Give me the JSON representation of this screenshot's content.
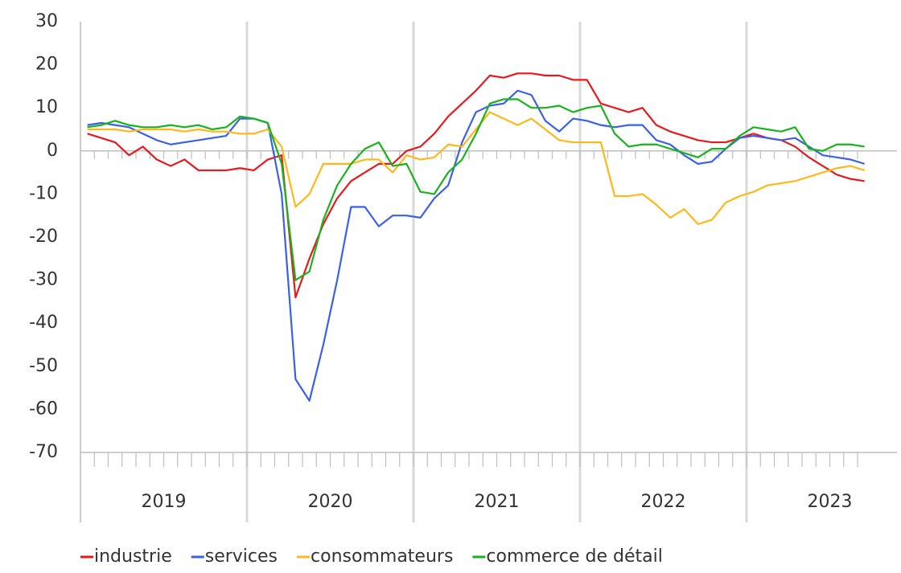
{
  "chart_data": {
    "type": "line",
    "groups": [
      "2019",
      "2020",
      "2021",
      "2022",
      "2023"
    ],
    "categories": [
      null,
      null,
      null,
      null,
      null,
      null,
      null,
      null,
      null,
      null,
      null,
      null,
      null,
      null,
      null,
      null,
      null,
      null,
      null,
      null,
      null,
      null,
      null,
      null,
      null,
      null,
      null,
      null,
      null,
      null,
      null,
      null,
      null,
      null,
      null,
      null,
      null,
      null,
      null,
      null,
      null,
      null,
      null,
      null,
      null,
      null,
      null,
      null,
      null,
      null,
      null,
      null,
      null,
      null,
      null,
      null,
      null
    ],
    "ylim": [
      -70,
      30
    ],
    "yticks": [
      30,
      20,
      10,
      0,
      -10,
      -20,
      -30,
      -40,
      -50,
      -60,
      -70
    ],
    "legend": "bottom",
    "series": [
      {
        "name": "industrie",
        "color": "#e8191c",
        "values": [
          4,
          3,
          2,
          -1,
          1,
          -2,
          -3.5,
          -2,
          -4.5,
          -4.5,
          -4.5,
          -4,
          -4.5,
          -2,
          -1,
          -34,
          -25,
          -17,
          -11,
          -7,
          -5,
          -3,
          -3,
          0,
          1,
          4,
          8,
          11,
          14,
          17.5,
          17,
          18,
          18,
          17.5,
          17.5,
          16.5,
          16.5,
          11,
          10,
          9,
          10,
          6,
          4.5,
          3.5,
          2.5,
          2,
          2,
          3,
          4,
          3,
          2.5,
          1,
          -1.5,
          -3.5,
          -5.5,
          -6.5,
          -7
        ]
      },
      {
        "name": "services",
        "color": "#3a60e8",
        "values": [
          6,
          6.5,
          6,
          5.5,
          4,
          2.5,
          1.5,
          2,
          2.5,
          3,
          3.5,
          7.5,
          7.5,
          6.5,
          -10,
          -53,
          -58,
          -45,
          -30,
          -13,
          -13,
          -17.5,
          -15,
          -15,
          -15.5,
          -11,
          -8,
          2,
          9,
          10.5,
          11,
          14,
          13,
          7,
          4.5,
          7.5,
          7,
          6,
          5.5,
          6,
          6,
          2.5,
          1.5,
          -1,
          -3,
          -2.5,
          0.5,
          3,
          3.5,
          3,
          2.5,
          3,
          1,
          -1,
          -1.5,
          -2,
          -3
        ]
      },
      {
        "name": "consommateurs",
        "color": "#ffb81c",
        "values": [
          5,
          5,
          5,
          4.5,
          5,
          5,
          5,
          4.5,
          5,
          4.5,
          4.5,
          4,
          4,
          5,
          1,
          -13,
          -10,
          -3,
          -3,
          -3,
          -2,
          -2,
          -5,
          -1,
          -2,
          -1.5,
          1.5,
          1,
          5,
          9,
          7.5,
          6,
          7.5,
          5,
          2.5,
          2,
          2,
          2,
          -10.5,
          -10.5,
          -10,
          -12.5,
          -15.5,
          -13.5,
          -17,
          -16,
          -12,
          -10.5,
          -9.5,
          -8,
          -7.5,
          -7,
          -6,
          -5,
          -4,
          -3.5,
          -4.5
        ]
      },
      {
        "name": "commerce de détail",
        "color": "#19b31e",
        "values": [
          5.5,
          6,
          7,
          6,
          5.5,
          5.5,
          6,
          5.5,
          6,
          5,
          5.5,
          8,
          7.5,
          6.5,
          -3,
          -30,
          -28,
          -16,
          -8,
          -3,
          0.5,
          2,
          -3.5,
          -3,
          -9.5,
          -10,
          -5,
          -2,
          4,
          11,
          12,
          12,
          10,
          10,
          10.5,
          9,
          10,
          10.5,
          4,
          1,
          1.5,
          1.5,
          0.5,
          -0.5,
          -1.5,
          0.5,
          0.5,
          3.5,
          5.5,
          5,
          4.5,
          5.5,
          0.5,
          0,
          1.5,
          1.5,
          1
        ]
      }
    ]
  }
}
